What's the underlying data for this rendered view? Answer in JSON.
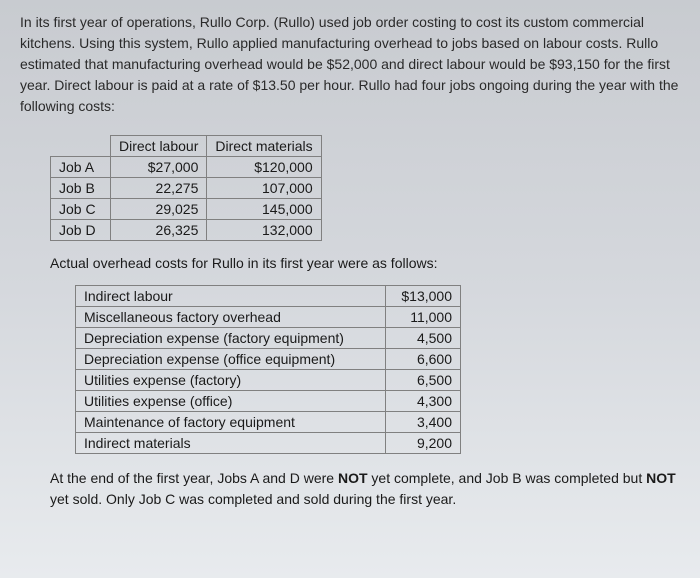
{
  "intro": "In its first year of operations, Rullo Corp. (Rullo) used job order costing to cost its custom commercial kitchens. Using this system, Rullo applied manufacturing overhead to jobs based on labour costs. Rullo estimated that manufacturing overhead would be $52,000 and direct labour would be $93,150 for the first year. Direct labour is paid at a rate of $13.50 per hour. Rullo had four jobs ongoing during the year with the following costs:",
  "jobsTable": {
    "headers": [
      "Direct labour",
      "Direct materials"
    ],
    "rows": [
      {
        "label": "Job A",
        "labour": "$27,000",
        "materials": "$120,000"
      },
      {
        "label": "Job B",
        "labour": "22,275",
        "materials": "107,000"
      },
      {
        "label": "Job C",
        "labour": "29,025",
        "materials": "145,000"
      },
      {
        "label": "Job D",
        "labour": "26,325",
        "materials": "132,000"
      }
    ]
  },
  "midText": "Actual overhead costs for Rullo in its first year were as follows:",
  "overheadTable": {
    "rows": [
      {
        "label": "Indirect labour",
        "value": "$13,000"
      },
      {
        "label": "Miscellaneous factory overhead",
        "value": "11,000"
      },
      {
        "label": "Depreciation expense (factory equipment)",
        "value": "4,500"
      },
      {
        "label": "Depreciation expense (office equipment)",
        "value": "6,600"
      },
      {
        "label": "Utilities expense (factory)",
        "value": "6,500"
      },
      {
        "label": "Utilities expense (office)",
        "value": "4,300"
      },
      {
        "label": "Maintenance of factory equipment",
        "value": "3,400"
      },
      {
        "label": "Indirect materials",
        "value": "9,200"
      }
    ]
  },
  "endText1": "At the end of the first year, Jobs A and D were ",
  "endBold1": "NOT",
  "endText2": " yet complete, and Job B was completed but ",
  "endBold2": "NOT",
  "endText3": " yet sold. Only Job C was completed and sold during the first year."
}
